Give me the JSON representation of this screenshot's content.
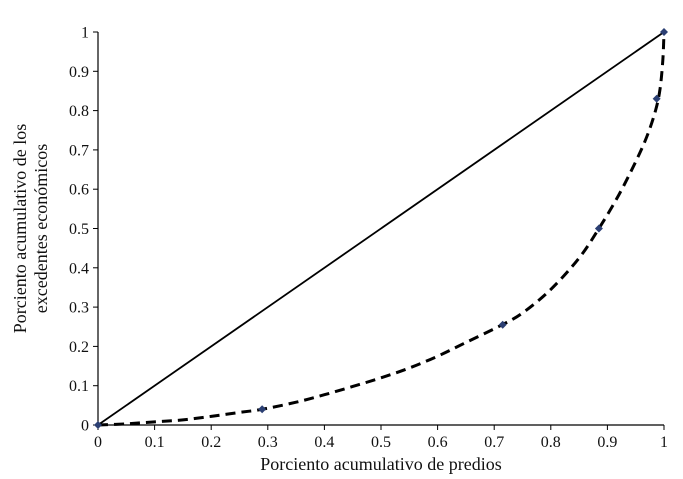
{
  "chart_data": {
    "type": "line",
    "xlabel": "Porciento acumulativo de predios",
    "ylabel_lines": [
      "Porciento acumulativo de los",
      "excedentes  económicos"
    ],
    "xlim": [
      0,
      1
    ],
    "ylim": [
      0,
      1
    ],
    "xticks": [
      "0",
      "0.1",
      "0.2",
      "0.3",
      "0.4",
      "0.5",
      "0.6",
      "0.7",
      "0.8",
      "0.9",
      "1"
    ],
    "yticks": [
      "0",
      "0.1",
      "0.2",
      "0.3",
      "0.4",
      "0.5",
      "0.6",
      "0.7",
      "0.8",
      "0.9",
      "1"
    ],
    "grid": false,
    "legend": "none",
    "series": [
      {
        "style": "solid",
        "color": "#000000",
        "x": [
          0,
          1
        ],
        "y": [
          0,
          1
        ]
      },
      {
        "style": "dashed",
        "color": "#000000",
        "curve_x": [
          0,
          0.05,
          0.1,
          0.15,
          0.2,
          0.25,
          0.29,
          0.35,
          0.4,
          0.45,
          0.5,
          0.55,
          0.6,
          0.65,
          0.71,
          0.75,
          0.8,
          0.85,
          0.885,
          0.92,
          0.95,
          0.97,
          0.985,
          0.993,
          0.998,
          1.0
        ],
        "curve_y": [
          0,
          0.003,
          0.008,
          0.013,
          0.022,
          0.032,
          0.04,
          0.058,
          0.077,
          0.098,
          0.12,
          0.145,
          0.175,
          0.21,
          0.252,
          0.285,
          0.345,
          0.425,
          0.5,
          0.585,
          0.67,
          0.735,
          0.8,
          0.855,
          0.93,
          1.0
        ]
      }
    ],
    "markers": {
      "color": "#2b3f73",
      "x": [
        0,
        0.29,
        0.715,
        0.885,
        0.987,
        1.0
      ],
      "y": [
        0,
        0.04,
        0.255,
        0.5,
        0.83,
        1.0
      ]
    }
  }
}
